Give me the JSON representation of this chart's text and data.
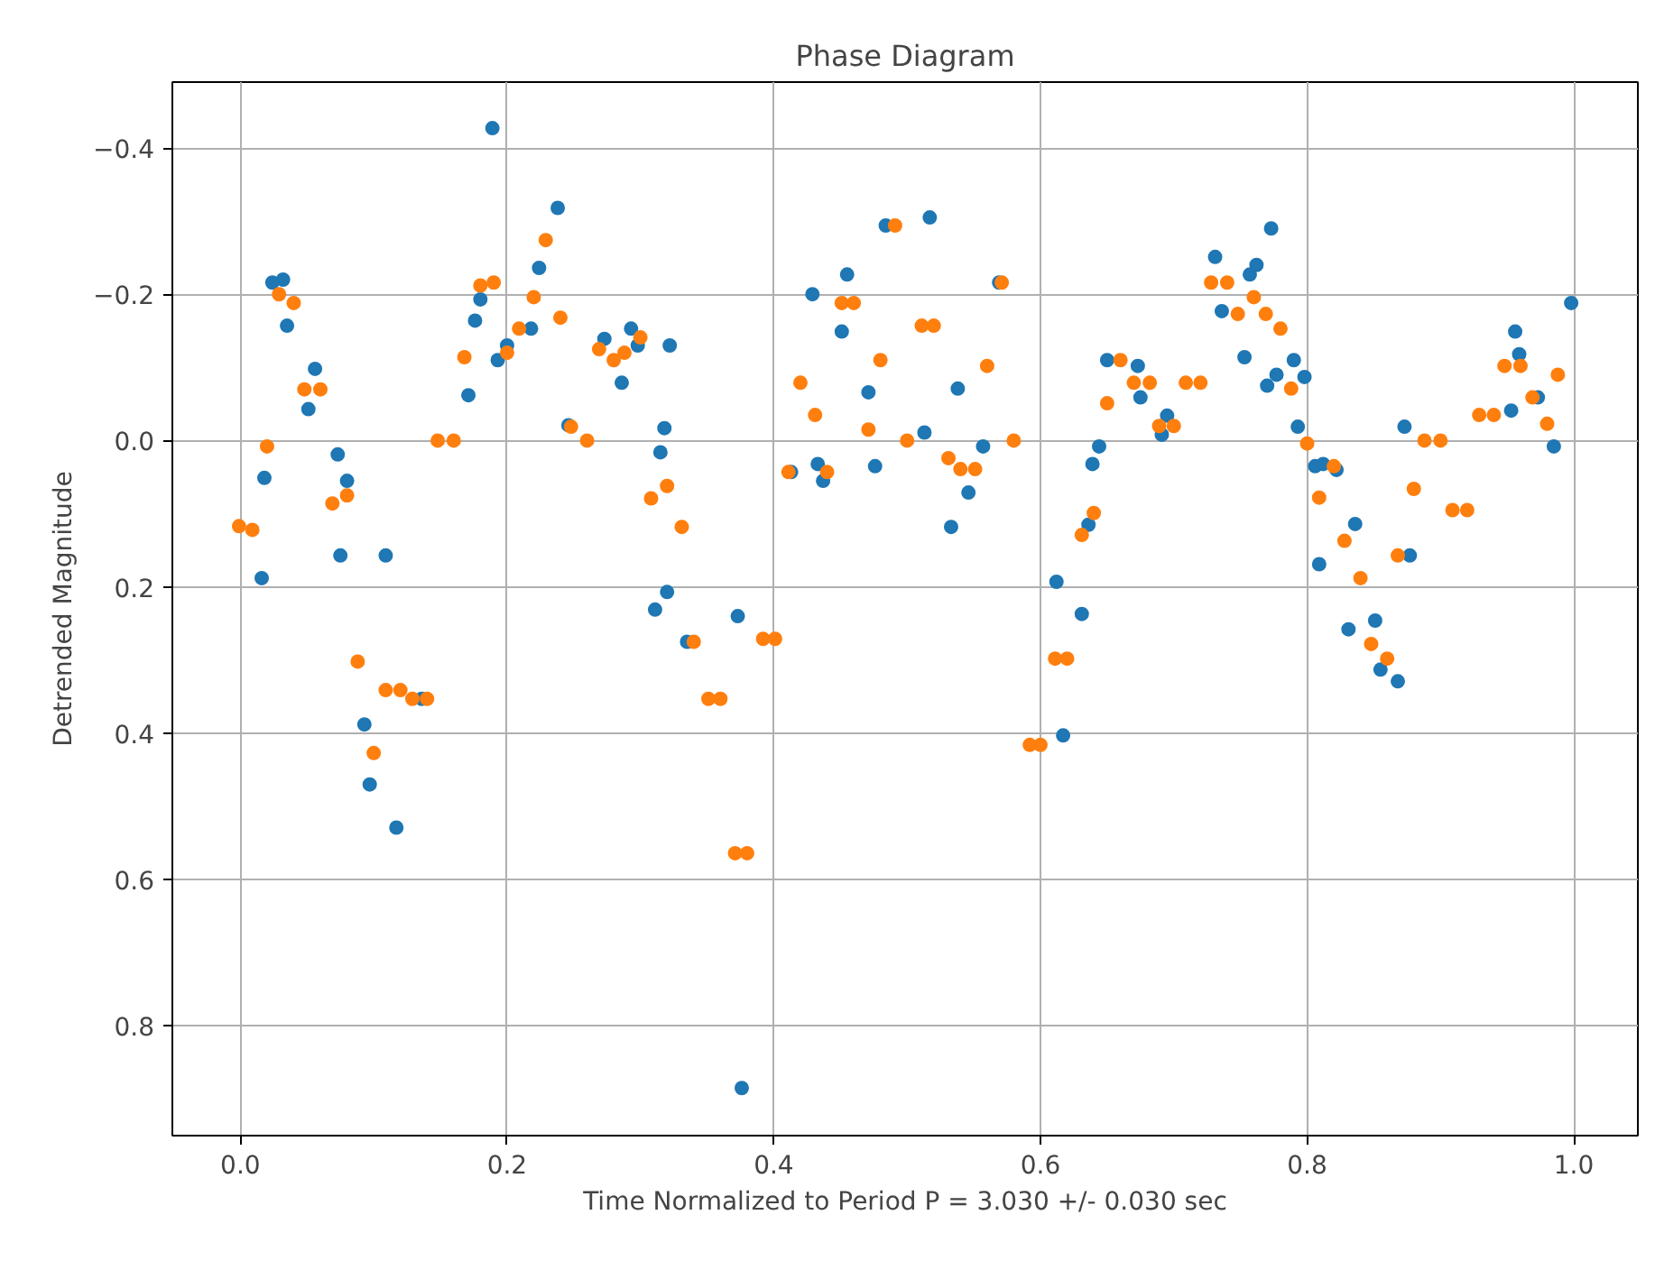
{
  "chart_data": {
    "type": "scatter",
    "title": "Phase Diagram",
    "xlabel": "Time Normalized to Period P = 3.030 +/- 0.030 sec",
    "ylabel": "Detrended Magnitude",
    "xlim": [
      -0.051,
      1.048
    ],
    "ylim": [
      0.95,
      -0.49
    ],
    "xticks": [
      {
        "value": 0,
        "label": "0.0"
      },
      {
        "value": 0.2,
        "label": "0.2"
      },
      {
        "value": 0.4,
        "label": "0.4"
      },
      {
        "value": 0.6,
        "label": "0.6"
      },
      {
        "value": 0.8,
        "label": "0.8"
      },
      {
        "value": 1,
        "label": "1.0"
      }
    ],
    "yticks": [
      {
        "value": -0.4,
        "label": "−0.4"
      },
      {
        "value": -0.2,
        "label": "−0.2"
      },
      {
        "value": 0,
        "label": "0.0"
      },
      {
        "value": 0.2,
        "label": "0.2"
      },
      {
        "value": 0.4,
        "label": "0.4"
      },
      {
        "value": 0.6,
        "label": "0.6"
      },
      {
        "value": 0.8,
        "label": "0.8"
      }
    ],
    "grid": true,
    "marker": "circle",
    "series": [
      {
        "color": "#1f77b4",
        "x": [
          0.016,
          0.018,
          0.024,
          0.032,
          0.035,
          0.051,
          0.056,
          0.073,
          0.075,
          0.08,
          0.093,
          0.097,
          0.109,
          0.117,
          0.136,
          0.171,
          0.176,
          0.18,
          0.189,
          0.193,
          0.2,
          0.218,
          0.224,
          0.238,
          0.246,
          0.273,
          0.286,
          0.293,
          0.298,
          0.311,
          0.315,
          0.318,
          0.32,
          0.322,
          0.335,
          0.373,
          0.376,
          0.413,
          0.429,
          0.433,
          0.437,
          0.451,
          0.455,
          0.471,
          0.476,
          0.484,
          0.513,
          0.517,
          0.533,
          0.538,
          0.546,
          0.557,
          0.569,
          0.612,
          0.617,
          0.631,
          0.636,
          0.639,
          0.644,
          0.65,
          0.673,
          0.675,
          0.691,
          0.695,
          0.731,
          0.736,
          0.753,
          0.757,
          0.762,
          0.77,
          0.773,
          0.777,
          0.79,
          0.793,
          0.798,
          0.806,
          0.809,
          0.812,
          0.822,
          0.831,
          0.836,
          0.851,
          0.855,
          0.868,
          0.873,
          0.877,
          0.953,
          0.956,
          0.959,
          0.973,
          0.985,
          0.998
        ],
        "values": [
          0.188,
          0.051,
          -0.216,
          -0.22,
          -0.157,
          -0.043,
          -0.098,
          0.019,
          0.157,
          0.055,
          0.388,
          0.47,
          0.157,
          0.529,
          0.353,
          -0.062,
          -0.164,
          -0.193,
          -0.427,
          -0.11,
          -0.13,
          -0.153,
          -0.236,
          -0.318,
          -0.021,
          -0.139,
          -0.079,
          -0.153,
          -0.13,
          0.231,
          0.016,
          -0.017,
          0.207,
          -0.13,
          0.275,
          0.24,
          0.885,
          0.043,
          -0.2,
          0.032,
          0.055,
          -0.149,
          -0.227,
          -0.066,
          0.035,
          -0.294,
          -0.011,
          -0.305,
          0.118,
          -0.071,
          0.071,
          0.008,
          -0.216,
          0.193,
          0.403,
          0.237,
          0.115,
          0.032,
          0.008,
          -0.11,
          -0.102,
          -0.059,
          -0.008,
          -0.034,
          -0.251,
          -0.177,
          -0.114,
          -0.227,
          -0.24,
          -0.075,
          -0.29,
          -0.09,
          -0.11,
          -0.019,
          -0.087,
          0.035,
          0.169,
          0.032,
          0.04,
          0.258,
          0.114,
          0.246,
          0.313,
          0.329,
          -0.019,
          0.157,
          -0.041,
          -0.149,
          -0.118,
          -0.059,
          0.008,
          -0.188
        ]
      },
      {
        "color": "#ff7f0e",
        "x": [
          -0.001,
          0.009,
          0.02,
          0.029,
          0.04,
          0.048,
          0.06,
          0.069,
          0.08,
          0.088,
          0.1,
          0.109,
          0.12,
          0.129,
          0.14,
          0.148,
          0.16,
          0.168,
          0.18,
          0.19,
          0.2,
          0.209,
          0.22,
          0.229,
          0.24,
          0.248,
          0.26,
          0.269,
          0.28,
          0.288,
          0.3,
          0.308,
          0.32,
          0.331,
          0.34,
          0.351,
          0.36,
          0.371,
          0.38,
          0.392,
          0.401,
          0.411,
          0.42,
          0.431,
          0.44,
          0.451,
          0.46,
          0.471,
          0.48,
          0.491,
          0.5,
          0.511,
          0.52,
          0.531,
          0.54,
          0.551,
          0.56,
          0.571,
          0.58,
          0.592,
          0.6,
          0.611,
          0.62,
          0.631,
          0.64,
          0.65,
          0.66,
          0.67,
          0.682,
          0.689,
          0.7,
          0.709,
          0.72,
          0.728,
          0.74,
          0.748,
          0.76,
          0.769,
          0.78,
          0.788,
          0.8,
          0.809,
          0.82,
          0.828,
          0.84,
          0.848,
          0.86,
          0.868,
          0.88,
          0.888,
          0.9,
          0.909,
          0.92,
          0.929,
          0.94,
          0.948,
          0.96,
          0.969,
          0.98,
          0.988
        ],
        "values": [
          0.117,
          0.122,
          0.008,
          -0.2,
          -0.188,
          -0.07,
          -0.07,
          0.086,
          0.075,
          0.302,
          0.427,
          0.341,
          0.341,
          0.353,
          0.353,
          0.0,
          0.0,
          -0.114,
          -0.212,
          -0.216,
          -0.12,
          -0.153,
          -0.196,
          -0.274,
          -0.168,
          -0.019,
          0.0,
          -0.125,
          -0.11,
          -0.12,
          -0.141,
          0.079,
          0.062,
          0.118,
          0.275,
          0.353,
          0.353,
          0.564,
          0.564,
          0.271,
          0.271,
          0.043,
          -0.079,
          -0.035,
          0.043,
          -0.188,
          -0.188,
          -0.015,
          -0.11,
          -0.294,
          0.0,
          -0.157,
          -0.157,
          0.024,
          0.039,
          0.039,
          -0.102,
          -0.216,
          0.0,
          0.416,
          0.416,
          0.298,
          0.298,
          0.129,
          0.099,
          -0.051,
          -0.11,
          -0.079,
          -0.079,
          -0.02,
          -0.02,
          -0.079,
          -0.079,
          -0.216,
          -0.216,
          -0.173,
          -0.196,
          -0.173,
          -0.153,
          -0.071,
          0.004,
          0.078,
          0.035,
          0.137,
          0.188,
          0.278,
          0.298,
          0.157,
          0.066,
          0.0,
          0.0,
          0.095,
          0.095,
          -0.035,
          -0.035,
          -0.102,
          -0.102,
          -0.059,
          -0.023,
          -0.09
        ]
      }
    ]
  }
}
